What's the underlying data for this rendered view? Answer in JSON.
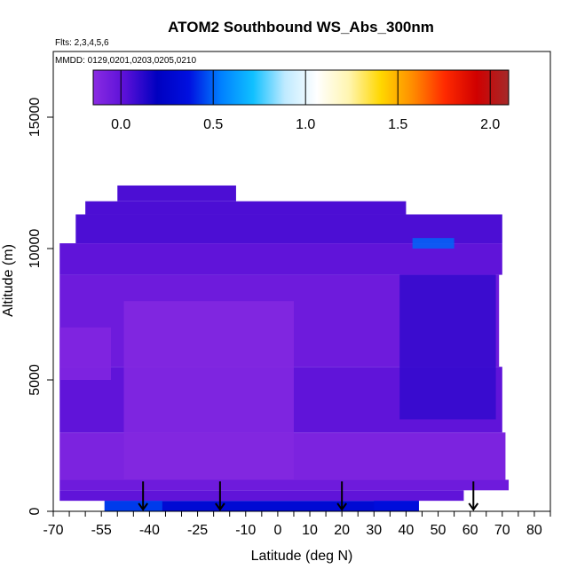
{
  "chart_data": {
    "type": "heatmap",
    "title": "ATOM2 Southbound WS_Abs_300nm",
    "flights_note": "Flts: 2,3,4,5,6",
    "dates_note": "MMDD: 0129,0201,0203,0205,0210",
    "xlabel": "Latitude (deg N)",
    "ylabel": "Altitude (m)",
    "xlim": [
      -70,
      85
    ],
    "ylim": [
      0,
      17500
    ],
    "x_ticks": [
      -70,
      -55,
      -40,
      -25,
      -10,
      0,
      10,
      20,
      30,
      40,
      50,
      60,
      70,
      80
    ],
    "y_ticks": [
      0,
      5000,
      10000,
      15000
    ],
    "colorbar": {
      "range": [
        -0.15,
        2.1
      ],
      "ticks": [
        0.0,
        0.5,
        1.0,
        1.5,
        2.0
      ],
      "tick_labels": [
        "0.0",
        "0.5",
        "1.0",
        "1.5",
        "2.0"
      ],
      "colors": [
        "#8a2be2",
        "#5a10d8",
        "#0000c0",
        "#0010e0",
        "#0080ff",
        "#10c0ff",
        "#bfeaff",
        "#ffffff",
        "#fff5b0",
        "#ffd700",
        "#ff8c00",
        "#ff2a00",
        "#d00000",
        "#a52a2a"
      ]
    },
    "arrows_lat": [
      -42,
      -18,
      20,
      61
    ],
    "bands": [
      {
        "alt0": 0,
        "alt1": 400,
        "lat0": -54,
        "lat1": 44,
        "value": 0.3
      },
      {
        "alt0": 400,
        "alt1": 800,
        "lat0": -68,
        "lat1": 58,
        "value": 0.0
      },
      {
        "alt0": 800,
        "alt1": 1200,
        "lat0": -68,
        "lat1": 72,
        "value": -0.05
      },
      {
        "alt0": 1200,
        "alt1": 3000,
        "lat0": -68,
        "lat1": 71,
        "value": -0.1
      },
      {
        "alt0": 3000,
        "alt1": 5500,
        "lat0": -68,
        "lat1": 70,
        "value": 0.0
      },
      {
        "alt0": 5500,
        "alt1": 9000,
        "lat0": -68,
        "lat1": 69,
        "value": -0.05
      },
      {
        "alt0": 9000,
        "alt1": 10200,
        "lat0": -68,
        "lat1": 70,
        "value": 0.0
      },
      {
        "alt0": 10200,
        "alt1": 11300,
        "lat0": -63,
        "lat1": 70,
        "value": 0.05
      },
      {
        "alt0": 11300,
        "alt1": 11800,
        "lat0": -60,
        "lat1": 40,
        "value": 0.05
      },
      {
        "alt0": 11800,
        "alt1": 12400,
        "lat0": -50,
        "lat1": -13,
        "value": 0.05
      }
    ],
    "patches": [
      {
        "alt0": 0,
        "alt1": 400,
        "lat0": -54,
        "lat1": -36,
        "value": 0.45
      },
      {
        "alt0": 0,
        "alt1": 400,
        "lat0": 30,
        "lat1": 44,
        "value": 0.35
      },
      {
        "alt0": 10000,
        "alt1": 10400,
        "lat0": 42,
        "lat1": 55,
        "value": 0.5
      },
      {
        "alt0": 1200,
        "alt1": 8000,
        "lat0": -48,
        "lat1": 5,
        "value": -0.13
      },
      {
        "alt0": 3500,
        "alt1": 9000,
        "lat0": 38,
        "lat1": 68,
        "value": 0.1
      },
      {
        "alt0": 5000,
        "alt1": 7000,
        "lat0": -68,
        "lat1": -52,
        "value": -0.12
      }
    ]
  }
}
